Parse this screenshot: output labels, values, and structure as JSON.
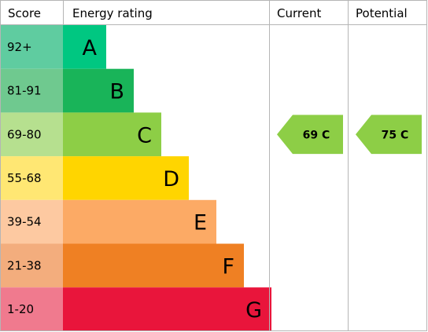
{
  "headers": {
    "score": "Score",
    "energy_rating": "Energy rating",
    "current": "Current",
    "potential": "Potential"
  },
  "chart_data": {
    "type": "bar",
    "title": "",
    "categories": [
      "92+",
      "81-91",
      "69-80",
      "55-68",
      "39-54",
      "21-38",
      "1-20"
    ],
    "bands": [
      {
        "score": "92+",
        "letter": "A",
        "color": "#00c781",
        "score_color": "#5fcca0",
        "length": 1
      },
      {
        "score": "81-91",
        "letter": "B",
        "color": "#19b459",
        "score_color": "#6fc98f",
        "length": 2
      },
      {
        "score": "69-80",
        "letter": "C",
        "color": "#8dce46",
        "score_color": "#b6e08f",
        "length": 3
      },
      {
        "score": "55-68",
        "letter": "D",
        "color": "#ffd500",
        "score_color": "#ffe773",
        "length": 4
      },
      {
        "score": "39-54",
        "letter": "E",
        "color": "#fcaa65",
        "score_color": "#fdc9a1",
        "length": 5
      },
      {
        "score": "21-38",
        "letter": "F",
        "color": "#ef8023",
        "score_color": "#f3ad7d",
        "length": 6
      },
      {
        "score": "1-20",
        "letter": "G",
        "color": "#e9153b",
        "score_color": "#f07a8e",
        "length": 7
      }
    ],
    "current": {
      "value": 69,
      "band": "C",
      "label": "69 C",
      "color": "#8dce46"
    },
    "potential": {
      "value": 75,
      "band": "C",
      "label": "75 C",
      "color": "#8dce46"
    },
    "grid": true
  }
}
